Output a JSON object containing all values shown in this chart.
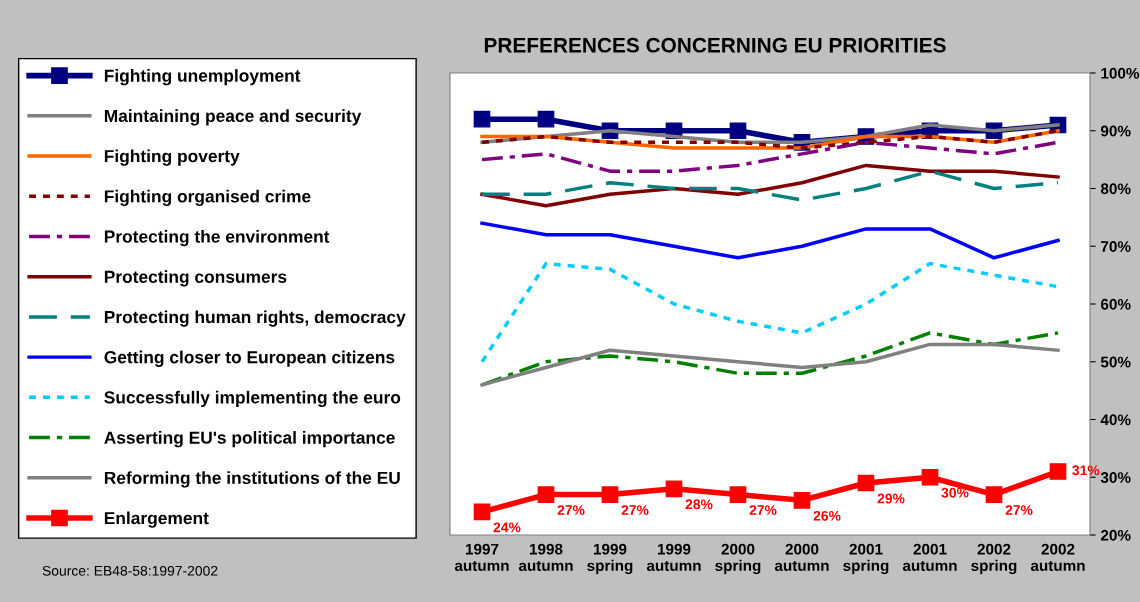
{
  "chart_data": {
    "type": "line",
    "title": "PREFERENCES CONCERNING EU PRIORITIES",
    "categories": [
      "1997\nautumn",
      "1998\nautumn",
      "1999\nspring",
      "1999\nautumn",
      "2000\nspring",
      "2000\nautumn",
      "2001\nspring",
      "2001\nautumn",
      "2002\nspring",
      "2002\nautumn"
    ],
    "series": [
      {
        "name": "Fighting unemployment",
        "color": "#000080",
        "marker": "square",
        "line_style": "solid",
        "values": [
          92,
          92,
          90,
          90,
          90,
          88,
          89,
          90,
          90,
          91
        ]
      },
      {
        "name": "Maintaining peace and security",
        "color": "#808080",
        "line_style": "solid",
        "values": [
          88,
          89,
          90,
          89,
          88,
          88,
          89,
          91,
          90,
          91
        ]
      },
      {
        "name": "Fighting poverty",
        "color": "#ff6600",
        "line_style": "solid",
        "values": [
          89,
          89,
          88,
          87,
          87,
          87,
          89,
          89,
          88,
          90
        ]
      },
      {
        "name": "Fighting organised crime",
        "color": "#800000",
        "line_style": "dotted",
        "values": [
          88,
          89,
          88,
          88,
          88,
          87,
          88,
          89,
          88,
          90
        ]
      },
      {
        "name": "Protecting the environment",
        "color": "#800080",
        "line_style": "dashdot",
        "values": [
          85,
          86,
          83,
          83,
          84,
          86,
          88,
          87,
          86,
          88
        ]
      },
      {
        "name": "Protecting consumers",
        "color": "#800000",
        "line_style": "solid",
        "values": [
          79,
          77,
          79,
          80,
          79,
          81,
          84,
          83,
          83,
          82
        ]
      },
      {
        "name": "Protecting human rights, democracy",
        "color": "#008080",
        "line_style": "dashed",
        "values": [
          79,
          79,
          81,
          80,
          80,
          78,
          80,
          83,
          80,
          81
        ]
      },
      {
        "name": "Getting closer to European citizens",
        "color": "#0000ff",
        "line_style": "solid",
        "values": [
          74,
          72,
          72,
          70,
          68,
          70,
          73,
          73,
          68,
          71
        ]
      },
      {
        "name": "Successfully implementing the euro",
        "color": "#00ccff",
        "line_style": "dotted",
        "values": [
          50,
          67,
          66,
          60,
          57,
          55,
          60,
          67,
          65,
          63
        ]
      },
      {
        "name": "Asserting EU's political importance",
        "color": "#008000",
        "line_style": "dashdot",
        "values": [
          46,
          50,
          51,
          50,
          48,
          48,
          51,
          55,
          53,
          55
        ]
      },
      {
        "name": "Reforming the institutions of the EU",
        "color": "#808080",
        "line_style": "solid",
        "values": [
          46,
          49,
          52,
          51,
          50,
          49,
          50,
          53,
          53,
          52
        ]
      },
      {
        "name": "Enlargement",
        "color": "#ff0000",
        "marker": "square",
        "line_style": "solid",
        "values": [
          24,
          27,
          27,
          28,
          27,
          26,
          29,
          30,
          27,
          31
        ],
        "value_labels": [
          "24%",
          "27%",
          "27%",
          "28%",
          "27%",
          "26%",
          "29%",
          "30%",
          "27%",
          "31%"
        ]
      }
    ],
    "ylim": [
      20,
      100
    ],
    "yticks": [
      {
        "value": 20,
        "label": "20%"
      },
      {
        "value": 30,
        "label": "30%"
      },
      {
        "value": 40,
        "label": "40%"
      },
      {
        "value": 50,
        "label": "50%"
      },
      {
        "value": 60,
        "label": "60%"
      },
      {
        "value": 70,
        "label": "70%"
      },
      {
        "value": 80,
        "label": "80%"
      },
      {
        "value": 90,
        "label": "90%"
      },
      {
        "value": 100,
        "label": "100%"
      }
    ],
    "grid": false,
    "legend": "left",
    "annotations": [
      "Source: EB48-58:1997-2002"
    ]
  }
}
